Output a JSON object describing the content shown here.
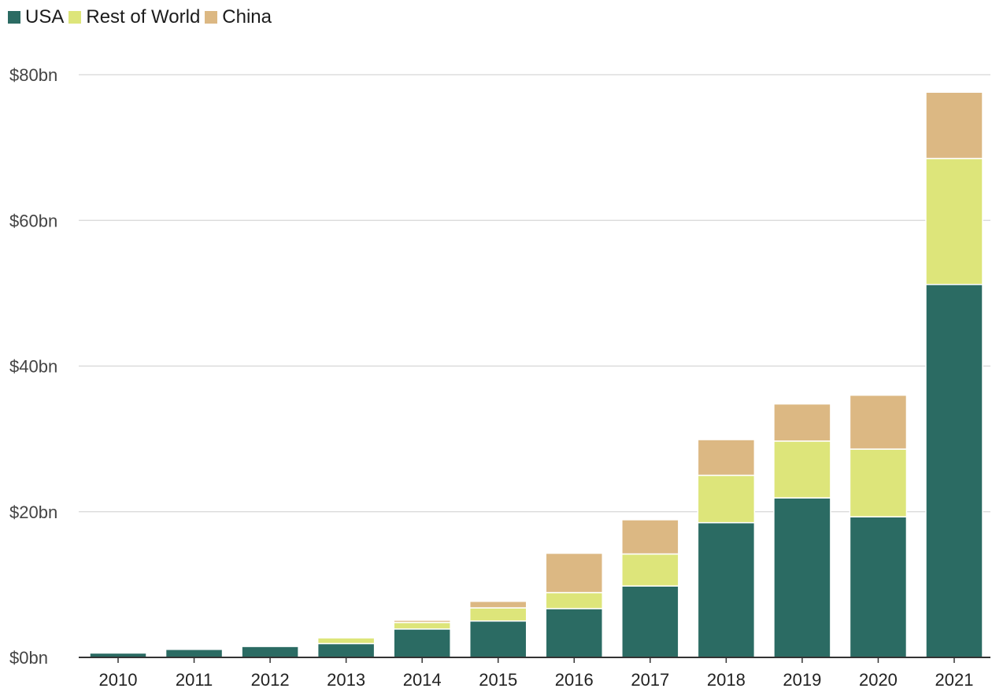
{
  "chart_data": {
    "type": "bar",
    "stacked": true,
    "categories": [
      "2010",
      "2011",
      "2012",
      "2013",
      "2014",
      "2015",
      "2016",
      "2017",
      "2018",
      "2019",
      "2020",
      "2021"
    ],
    "series": [
      {
        "name": "USA",
        "color": "#2b6b63",
        "values": [
          0.6,
          1.1,
          1.5,
          1.9,
          3.9,
          5.0,
          6.7,
          9.8,
          18.5,
          21.9,
          19.3,
          51.2
        ]
      },
      {
        "name": "Rest of World",
        "color": "#dde57a",
        "values": [
          0.0,
          0.0,
          0.0,
          0.8,
          0.9,
          1.8,
          2.2,
          4.4,
          6.5,
          7.8,
          9.3,
          17.3
        ]
      },
      {
        "name": "China",
        "color": "#dcb883",
        "values": [
          0.0,
          0.0,
          0.0,
          0.1,
          0.3,
          0.9,
          5.4,
          4.7,
          4.9,
          5.1,
          7.4,
          9.1
        ]
      }
    ],
    "ylim": [
      0,
      80
    ],
    "yticks": [
      0,
      20,
      40,
      60,
      80
    ],
    "ytick_labels": [
      "$0bn",
      "$20bn",
      "$40bn",
      "$60bn",
      "$80bn"
    ],
    "grid": true,
    "legend_position": "top-left",
    "title": "",
    "xlabel": "",
    "ylabel": ""
  }
}
